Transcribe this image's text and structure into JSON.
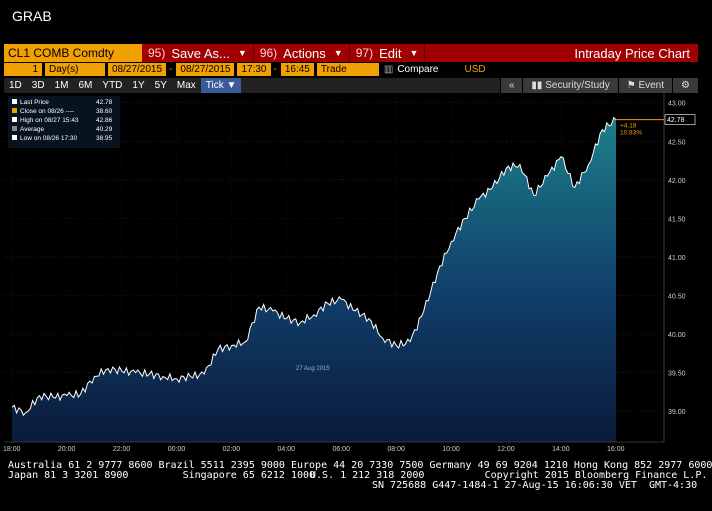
{
  "screen_title": "GRAB",
  "toolbar": {
    "ticker": "CL1 COMB Comdty",
    "save": {
      "num": "95)",
      "label": "Save As..."
    },
    "actions": {
      "num": "96)",
      "label": "Actions"
    },
    "edit": {
      "num": "97)",
      "label": "Edit"
    },
    "chart_title": "Intraday Price Chart"
  },
  "params": {
    "period_count": "1",
    "period_unit": "Day(s)",
    "start_date": "08/27/2015",
    "end_date": "08/27/2015",
    "start_time": "17:30",
    "end_time": "16:45",
    "event": "Trade",
    "compare": "Compare",
    "currency": "USD"
  },
  "tabs": [
    "1D",
    "3D",
    "1M",
    "6M",
    "YTD",
    "1Y",
    "5Y",
    "Max",
    "Tick ▼"
  ],
  "right_tabs": {
    "security": "Security/Study",
    "event": "Event"
  },
  "legend": [
    {
      "label": "Last Price",
      "value": "42.78"
    },
    {
      "label": "Close on 08/26 ----",
      "value": "38.60"
    },
    {
      "label": "High on 08/27 15:43",
      "value": "42.86"
    },
    {
      "label": "Average",
      "value": "40.29"
    },
    {
      "label": "Low on 08/26 17:30",
      "value": "38.95"
    }
  ],
  "last_tag": "42.78",
  "change": {
    "abs": "+4.18",
    "pct": "10.83%"
  },
  "date_label": "27 Aug 2015",
  "colors": {
    "orange": "#f0a000",
    "red": "#a00000",
    "line": "#ffffff",
    "fill_top": "#1e7f8a",
    "fill_bottom": "#0a1a3a"
  },
  "chart_data": {
    "type": "area",
    "x": [
      "18:00",
      "18:30",
      "19:00",
      "19:30",
      "20:00",
      "20:30",
      "21:00",
      "21:30",
      "22:00",
      "22:30",
      "23:00",
      "23:30",
      "00:00",
      "00:30",
      "01:00",
      "01:30",
      "02:00",
      "02:30",
      "03:00",
      "03:30",
      "04:00",
      "04:30",
      "05:00",
      "05:30",
      "06:00",
      "06:30",
      "07:00",
      "07:30",
      "08:00",
      "08:30",
      "09:00",
      "09:30",
      "10:00",
      "10:30",
      "11:00",
      "11:30",
      "12:00",
      "12:30",
      "13:00",
      "13:30",
      "14:00",
      "14:30",
      "15:00",
      "15:30",
      "15:45"
    ],
    "y": [
      39.05,
      38.98,
      39.2,
      39.18,
      39.2,
      39.22,
      39.45,
      39.55,
      39.52,
      39.5,
      39.48,
      39.45,
      39.42,
      39.45,
      39.48,
      39.8,
      39.85,
      39.9,
      40.35,
      40.3,
      40.2,
      40.15,
      40.25,
      40.4,
      40.45,
      40.3,
      40.2,
      39.95,
      39.85,
      39.9,
      40.3,
      40.8,
      41.2,
      41.5,
      41.75,
      41.9,
      42.15,
      42.2,
      41.8,
      42.05,
      42.3,
      41.9,
      42.2,
      42.65,
      42.78
    ],
    "ylim": [
      38.6,
      43.1
    ],
    "y_ticks": [
      "43.00",
      "42.50",
      "42.00",
      "41.50",
      "41.00",
      "40.50",
      "40.00",
      "39.50",
      "39.00"
    ],
    "x_ticks": [
      "18:00",
      "20:00",
      "22:00",
      "00:00",
      "02:00",
      "04:00",
      "06:00",
      "08:00",
      "10:00",
      "12:00",
      "14:00",
      "16:00"
    ],
    "grid": true
  },
  "footer": {
    "line1": "Australia 61 2 9777 8600 Brazil 5511 2395 9000 Europe 44 20 7330 7500 Germany 49 69 9204 1210 Hong Kong 852 2977 6000",
    "line2a": "Japan 81 3 3201 8900         Singapore 65 6212 1000",
    "line2b": "U.S. 1 212 318 2000          Copyright 2015 Bloomberg Finance L.P.",
    "line3": "SN 725688 G447-1484-1 27-Aug-15 16:06:30 VET  GMT-4:30"
  }
}
